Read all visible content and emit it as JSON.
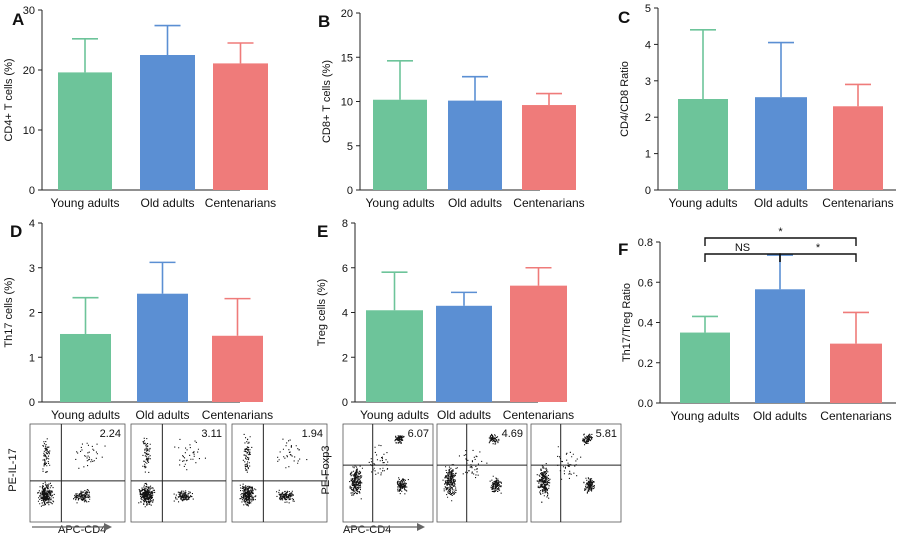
{
  "chart_data": [
    {
      "panel": "A",
      "type": "bar",
      "categories": [
        "Young adults",
        "Old adults",
        "Centenarians"
      ],
      "values": [
        19.6,
        22.5,
        21.1
      ],
      "errors": [
        5.6,
        4.9,
        3.4
      ],
      "ylabel": "CD4+ T cells (%)",
      "ylim": [
        0,
        30
      ],
      "ticks": [
        0,
        10,
        20,
        30
      ]
    },
    {
      "panel": "B",
      "type": "bar",
      "categories": [
        "Young adults",
        "Old adults",
        "Centenarians"
      ],
      "values": [
        10.2,
        10.1,
        9.6
      ],
      "errors": [
        4.4,
        2.7,
        1.3
      ],
      "ylabel": "CD8+ T cells (%)",
      "ylim": [
        0,
        20
      ],
      "ticks": [
        0,
        5,
        10,
        15,
        20
      ]
    },
    {
      "panel": "C",
      "type": "bar",
      "categories": [
        "Young adults",
        "Old adults",
        "Centenarians"
      ],
      "values": [
        2.5,
        2.55,
        2.3
      ],
      "errors": [
        1.9,
        1.5,
        0.6
      ],
      "ylabel": "CD4/CD8 Ratio",
      "ylim": [
        0,
        5
      ],
      "ticks": [
        0,
        1,
        2,
        3,
        4,
        5
      ]
    },
    {
      "panel": "D",
      "type": "bar",
      "categories": [
        "Young adults",
        "Old adults",
        "Centenarians"
      ],
      "values": [
        1.52,
        2.42,
        1.48
      ],
      "errors": [
        0.81,
        0.7,
        0.83
      ],
      "ylabel": "Th17 cells (%)",
      "ylim": [
        0,
        4
      ],
      "ticks": [
        0,
        1,
        2,
        3,
        4
      ]
    },
    {
      "panel": "E",
      "type": "bar",
      "categories": [
        "Young adults",
        "Old adults",
        "Centenarians"
      ],
      "values": [
        4.1,
        4.3,
        5.2
      ],
      "errors": [
        1.7,
        0.6,
        0.8
      ],
      "ylabel": "Treg cells (%)",
      "ylim": [
        0,
        8
      ],
      "ticks": [
        0,
        2,
        4,
        6,
        8
      ]
    },
    {
      "panel": "F",
      "type": "bar",
      "categories": [
        "Young adults",
        "Old adults",
        "Centenarians"
      ],
      "values": [
        0.35,
        0.565,
        0.295
      ],
      "errors": [
        0.08,
        0.17,
        0.155
      ],
      "ylabel": "Th17/Treg Ratio",
      "ylim": [
        0,
        0.8
      ],
      "ticks": [
        0.0,
        0.2,
        0.4,
        0.6,
        0.8
      ],
      "annotations": [
        {
          "pair": [
            "Young adults",
            "Old adults"
          ],
          "label": "NS"
        },
        {
          "pair": [
            "Old adults",
            "Centenarians"
          ],
          "label": "*"
        },
        {
          "pair": [
            "Young adults",
            "Centenarians"
          ],
          "label": "*"
        }
      ]
    }
  ],
  "colors": [
    "#6dc49a",
    "#5b8fd3",
    "#ef7b7a"
  ],
  "flow_panels": [
    {
      "ylabel": "PE-IL-17",
      "xlabel": "APC-CD4",
      "values": [
        "2.24",
        "3.11",
        "1.94"
      ]
    },
    {
      "ylabel": "PE-Foxp3",
      "xlabel": "APC-CD4",
      "values": [
        "6.07",
        "4.69",
        "5.81"
      ]
    }
  ]
}
